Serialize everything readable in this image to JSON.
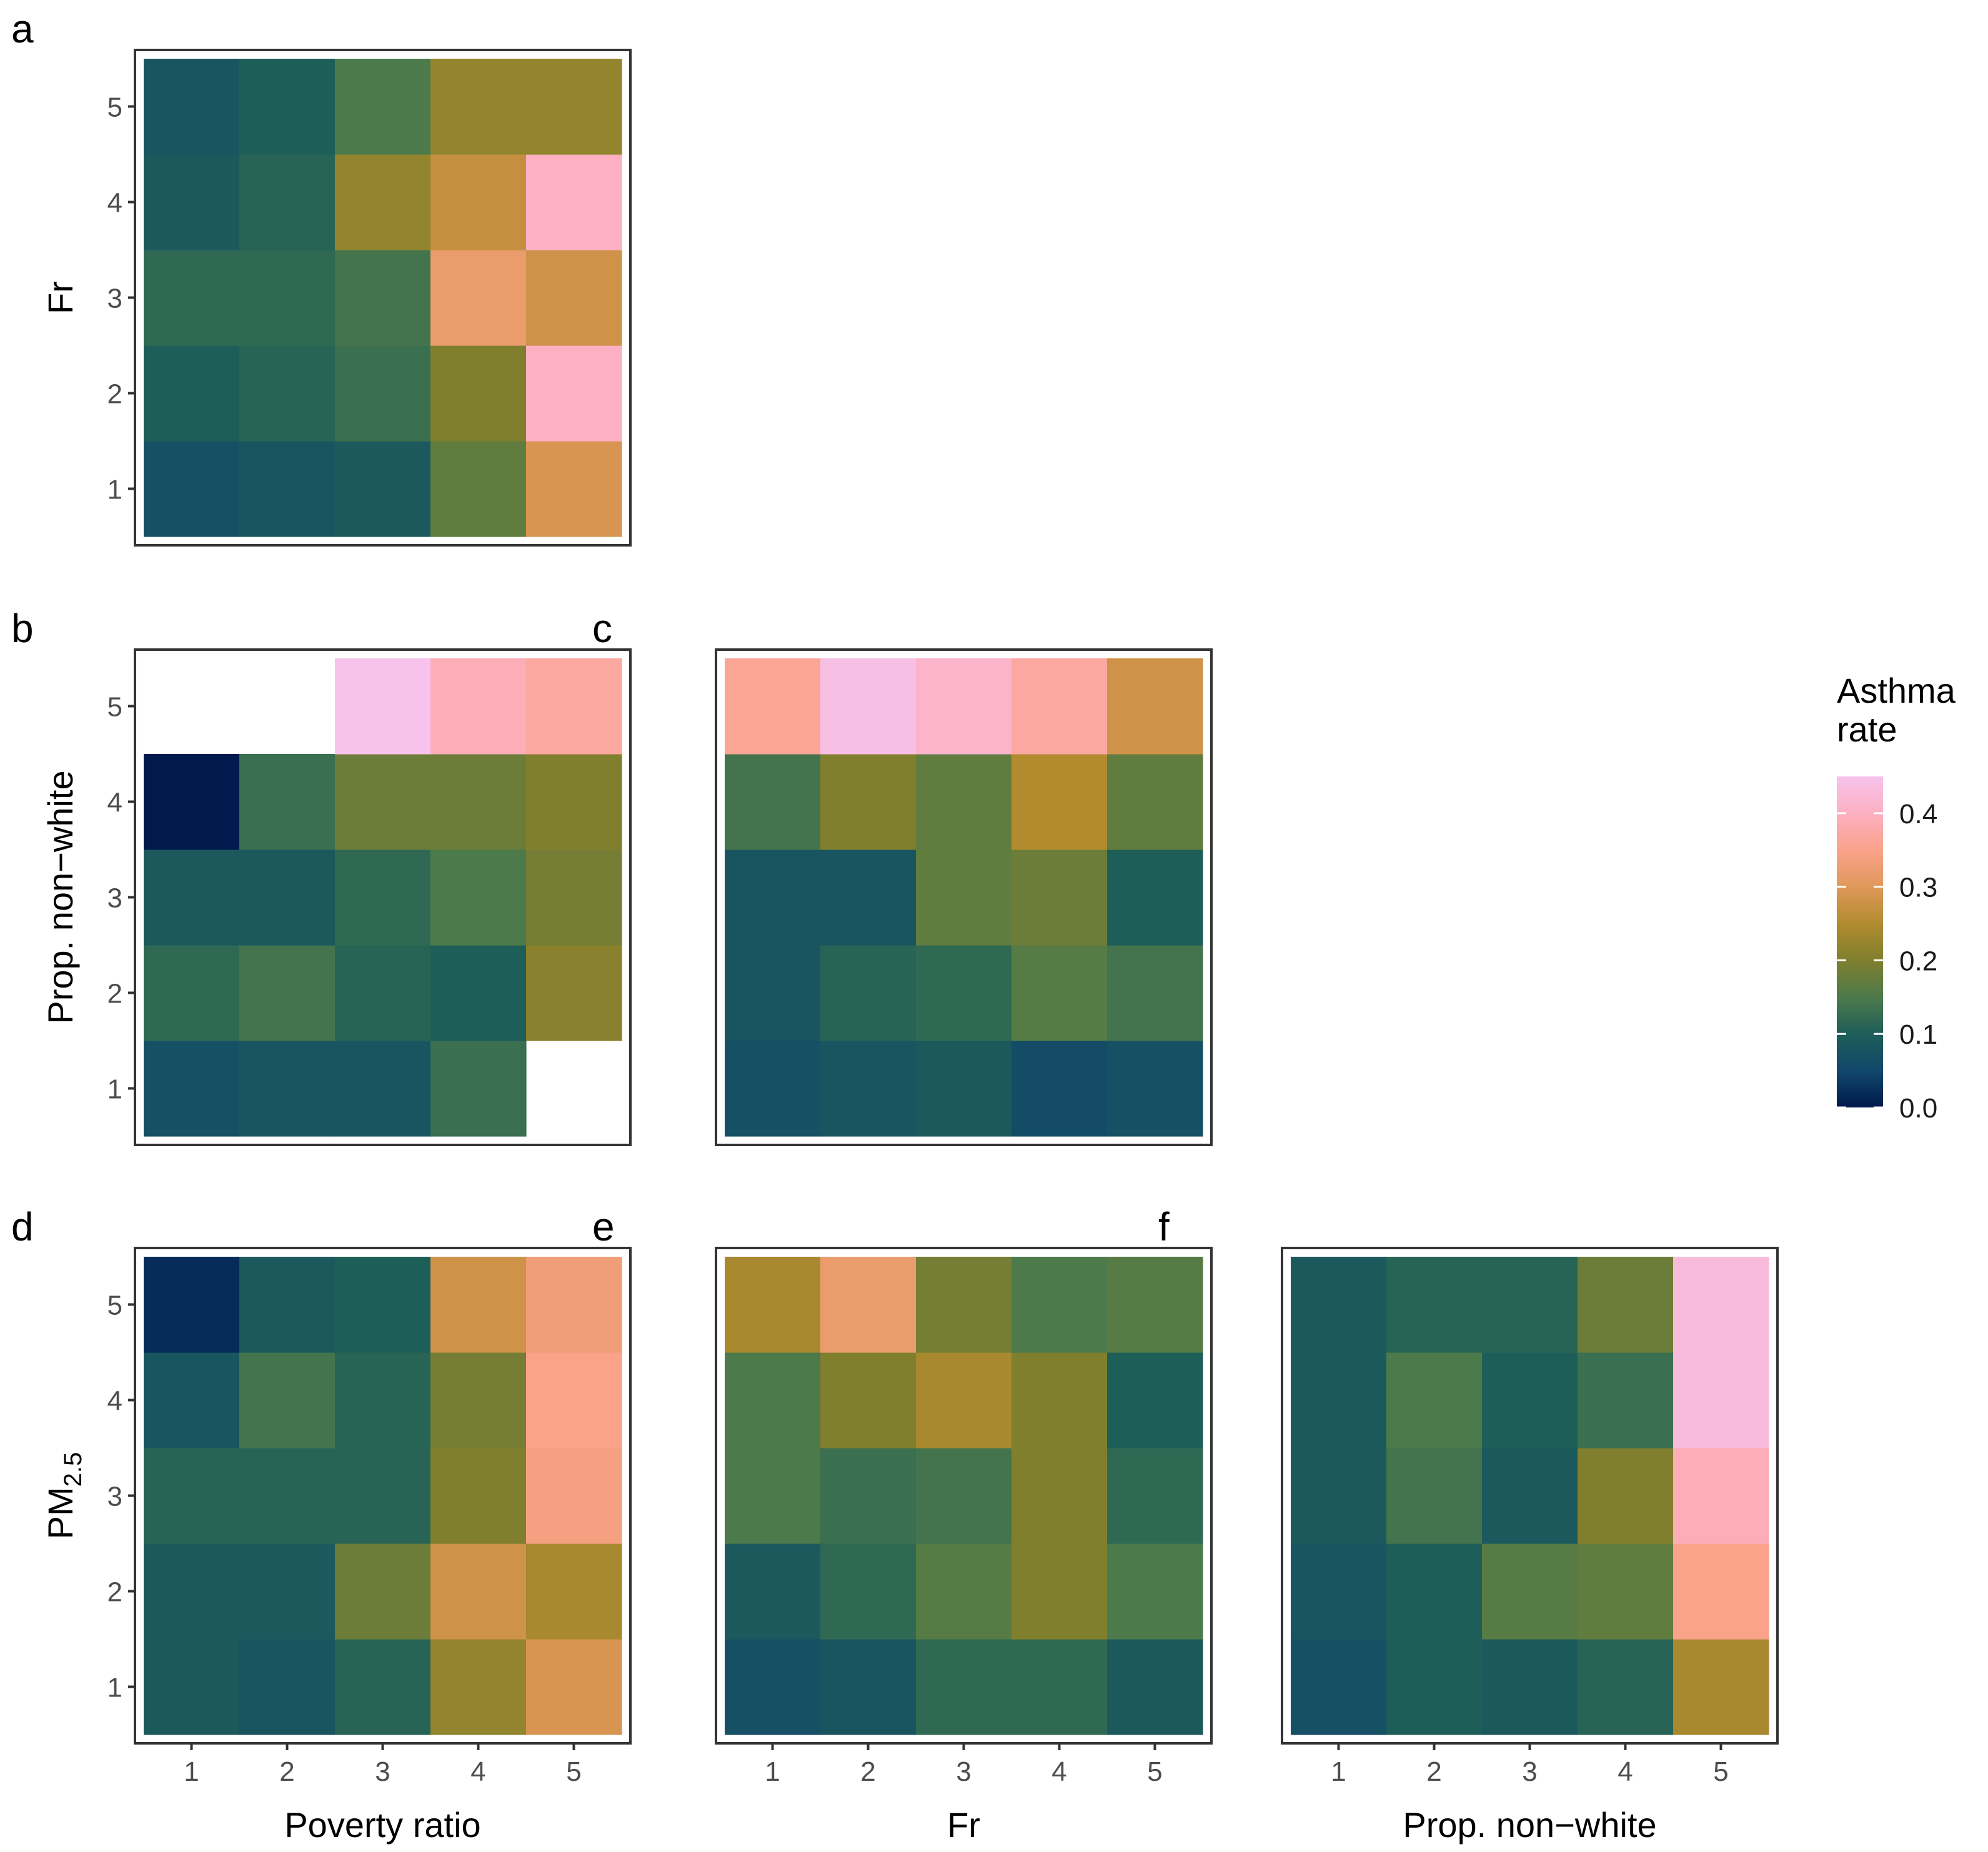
{
  "chart_data": {
    "type": "heatmap",
    "legend": {
      "title_lines": [
        "Asthma",
        "rate"
      ],
      "ticks": [
        "0.0",
        "0.1",
        "0.2",
        "0.3",
        "0.4"
      ],
      "tick_values": [
        0.0,
        0.1,
        0.2,
        0.3,
        0.4
      ],
      "range": [
        0.0,
        0.45
      ],
      "colors": [
        "#001A4D",
        "#11476B",
        "#1E5E59",
        "#4C7A4A",
        "#7F7F2E",
        "#B28B2F",
        "#E0985A",
        "#FAA28A",
        "#FCB0C2",
        "#F7C3EC"
      ],
      "placement": "right"
    },
    "panels": [
      {
        "id": "a",
        "label": "a",
        "xlabel": "Poverty ratio",
        "ylabel": "Fr",
        "ylabel_sub": "",
        "x_categories": [
          "1",
          "2",
          "3",
          "4",
          "5"
        ],
        "y_categories": [
          "1",
          "2",
          "3",
          "4",
          "5"
        ],
        "show_x_ticks": false,
        "show_x_title": false,
        "show_y_ticks": true,
        "show_y_title": true,
        "values": [
          [
            0.07,
            0.08,
            0.09,
            0.17,
            0.29
          ],
          [
            0.1,
            0.11,
            0.13,
            0.2,
            0.4
          ],
          [
            0.12,
            0.12,
            0.14,
            0.32,
            0.28
          ],
          [
            0.09,
            0.11,
            0.22,
            0.27,
            0.4
          ],
          [
            0.08,
            0.1,
            0.15,
            0.22,
            0.22
          ]
        ]
      },
      {
        "id": "b",
        "label": "b",
        "xlabel": "Poverty ratio",
        "ylabel": "Prop. non−white",
        "ylabel_sub": "",
        "x_categories": [
          "1",
          "2",
          "3",
          "4",
          "5"
        ],
        "y_categories": [
          "1",
          "2",
          "3",
          "4",
          "5"
        ],
        "show_x_ticks": false,
        "show_x_title": false,
        "show_y_ticks": true,
        "show_y_title": true,
        "values": [
          [
            0.07,
            0.08,
            0.08,
            0.13,
            null
          ],
          [
            0.12,
            0.14,
            0.11,
            0.1,
            0.21
          ],
          [
            0.09,
            0.09,
            0.12,
            0.15,
            0.19
          ],
          [
            0.0,
            0.13,
            0.18,
            0.18,
            0.2
          ],
          [
            null,
            null,
            0.45,
            0.39,
            0.37
          ]
        ]
      },
      {
        "id": "c",
        "label": "c",
        "xlabel": "Fr",
        "ylabel": "",
        "ylabel_sub": "",
        "x_categories": [
          "1",
          "2",
          "3",
          "4",
          "5"
        ],
        "y_categories": [
          "1",
          "2",
          "3",
          "4",
          "5"
        ],
        "show_x_ticks": false,
        "show_x_title": false,
        "show_y_ticks": false,
        "show_y_title": false,
        "values": [
          [
            0.07,
            0.08,
            0.09,
            0.06,
            0.07
          ],
          [
            0.08,
            0.11,
            0.12,
            0.16,
            0.14
          ],
          [
            0.08,
            0.08,
            0.17,
            0.18,
            0.1
          ],
          [
            0.14,
            0.2,
            0.17,
            0.25,
            0.17
          ],
          [
            0.36,
            0.44,
            0.41,
            0.37,
            0.28
          ]
        ]
      },
      {
        "id": "d",
        "label": "d",
        "xlabel": "Poverty ratio",
        "ylabel": "PM",
        "ylabel_sub": "2.5",
        "x_categories": [
          "1",
          "2",
          "3",
          "4",
          "5"
        ],
        "y_categories": [
          "1",
          "2",
          "3",
          "4",
          "5"
        ],
        "show_x_ticks": true,
        "show_x_title": true,
        "show_y_ticks": true,
        "show_y_title": true,
        "values": [
          [
            0.09,
            0.08,
            0.11,
            0.22,
            0.29
          ],
          [
            0.09,
            0.09,
            0.18,
            0.28,
            0.24
          ],
          [
            0.11,
            0.11,
            0.11,
            0.2,
            0.34
          ],
          [
            0.08,
            0.14,
            0.11,
            0.19,
            0.35
          ],
          [
            0.02,
            0.09,
            0.1,
            0.28,
            0.33
          ]
        ]
      },
      {
        "id": "e",
        "label": "e",
        "xlabel": "Fr",
        "ylabel": "",
        "ylabel_sub": "",
        "x_categories": [
          "1",
          "2",
          "3",
          "4",
          "5"
        ],
        "y_categories": [
          "1",
          "2",
          "3",
          "4",
          "5"
        ],
        "show_x_ticks": true,
        "show_x_title": true,
        "show_y_ticks": false,
        "show_y_title": false,
        "values": [
          [
            0.07,
            0.08,
            0.12,
            0.12,
            0.09
          ],
          [
            0.09,
            0.12,
            0.16,
            0.2,
            0.15
          ],
          [
            0.15,
            0.13,
            0.14,
            0.2,
            0.12
          ],
          [
            0.15,
            0.2,
            0.24,
            0.2,
            0.1
          ],
          [
            0.24,
            0.32,
            0.19,
            0.15,
            0.16
          ]
        ]
      },
      {
        "id": "f",
        "label": "f",
        "xlabel": "Prop. non−white",
        "ylabel": "",
        "ylabel_sub": "",
        "x_categories": [
          "1",
          "2",
          "3",
          "4",
          "5"
        ],
        "y_categories": [
          "1",
          "2",
          "3",
          "4",
          "5"
        ],
        "show_x_ticks": true,
        "show_x_title": true,
        "show_y_ticks": false,
        "show_y_title": false,
        "values": [
          [
            0.07,
            0.1,
            0.09,
            0.11,
            0.24
          ],
          [
            0.08,
            0.1,
            0.16,
            0.17,
            0.35
          ],
          [
            0.09,
            0.14,
            0.09,
            0.2,
            0.39
          ],
          [
            0.09,
            0.15,
            0.1,
            0.13,
            0.43
          ],
          [
            0.09,
            0.11,
            0.11,
            0.18,
            0.43
          ]
        ]
      }
    ]
  }
}
